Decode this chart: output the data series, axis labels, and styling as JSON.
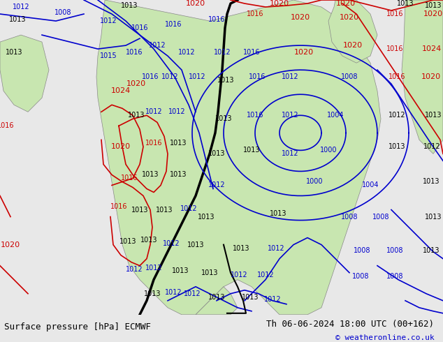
{
  "title_left": "Surface pressure [hPa] ECMWF",
  "title_right": "Th 06-06-2024 18:00 UTC (00+162)",
  "copyright": "© weatheronline.co.uk",
  "bg_color": "#e8e8e8",
  "map_bg": "#d0e8f0",
  "land_color_light": "#c8e6b0",
  "land_color_dark": "#a0b890",
  "text_color_black": "#000000",
  "text_color_blue": "#0000cd",
  "text_color_red": "#cc0000",
  "footer_bg": "#d8d8d8",
  "figsize": [
    6.34,
    4.9
  ],
  "dpi": 100
}
